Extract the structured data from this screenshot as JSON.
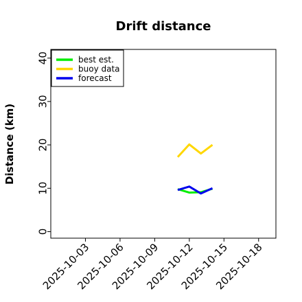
{
  "chart_data": {
    "type": "line",
    "title": "Drift distance",
    "xlabel": "",
    "ylabel": "Distance (km)",
    "x_ticks": [
      "2025-10-03",
      "2025-10-06",
      "2025-10-09",
      "2025-10-12",
      "2025-10-15",
      "2025-10-18"
    ],
    "highlight_tick": "2025-10-09",
    "highlight_color": "#228b22",
    "xlim": [
      "2025-10-00",
      "2025-10-19.5"
    ],
    "ylim": [
      -1.5,
      42
    ],
    "y_ticks": [
      0,
      10,
      20,
      30,
      40
    ],
    "grid": false,
    "legend_position": "top-left",
    "series": [
      {
        "name": "best est.",
        "color": "#00ee00",
        "x": [
          "2025-10-11",
          "2025-10-12",
          "2025-10-13",
          "2025-10-14"
        ],
        "y": [
          9.8,
          9.0,
          9.1,
          9.9
        ]
      },
      {
        "name": "buoy data",
        "color": "#ffd700",
        "x": [
          "2025-10-11",
          "2025-10-12",
          "2025-10-13",
          "2025-10-14"
        ],
        "y": [
          17.2,
          20.1,
          18.0,
          20.0
        ]
      },
      {
        "name": "forecast",
        "color": "#0000ee",
        "x": [
          "2025-10-11",
          "2025-10-12",
          "2025-10-13",
          "2025-10-14"
        ],
        "y": [
          9.6,
          10.4,
          8.8,
          10.0
        ]
      }
    ]
  }
}
